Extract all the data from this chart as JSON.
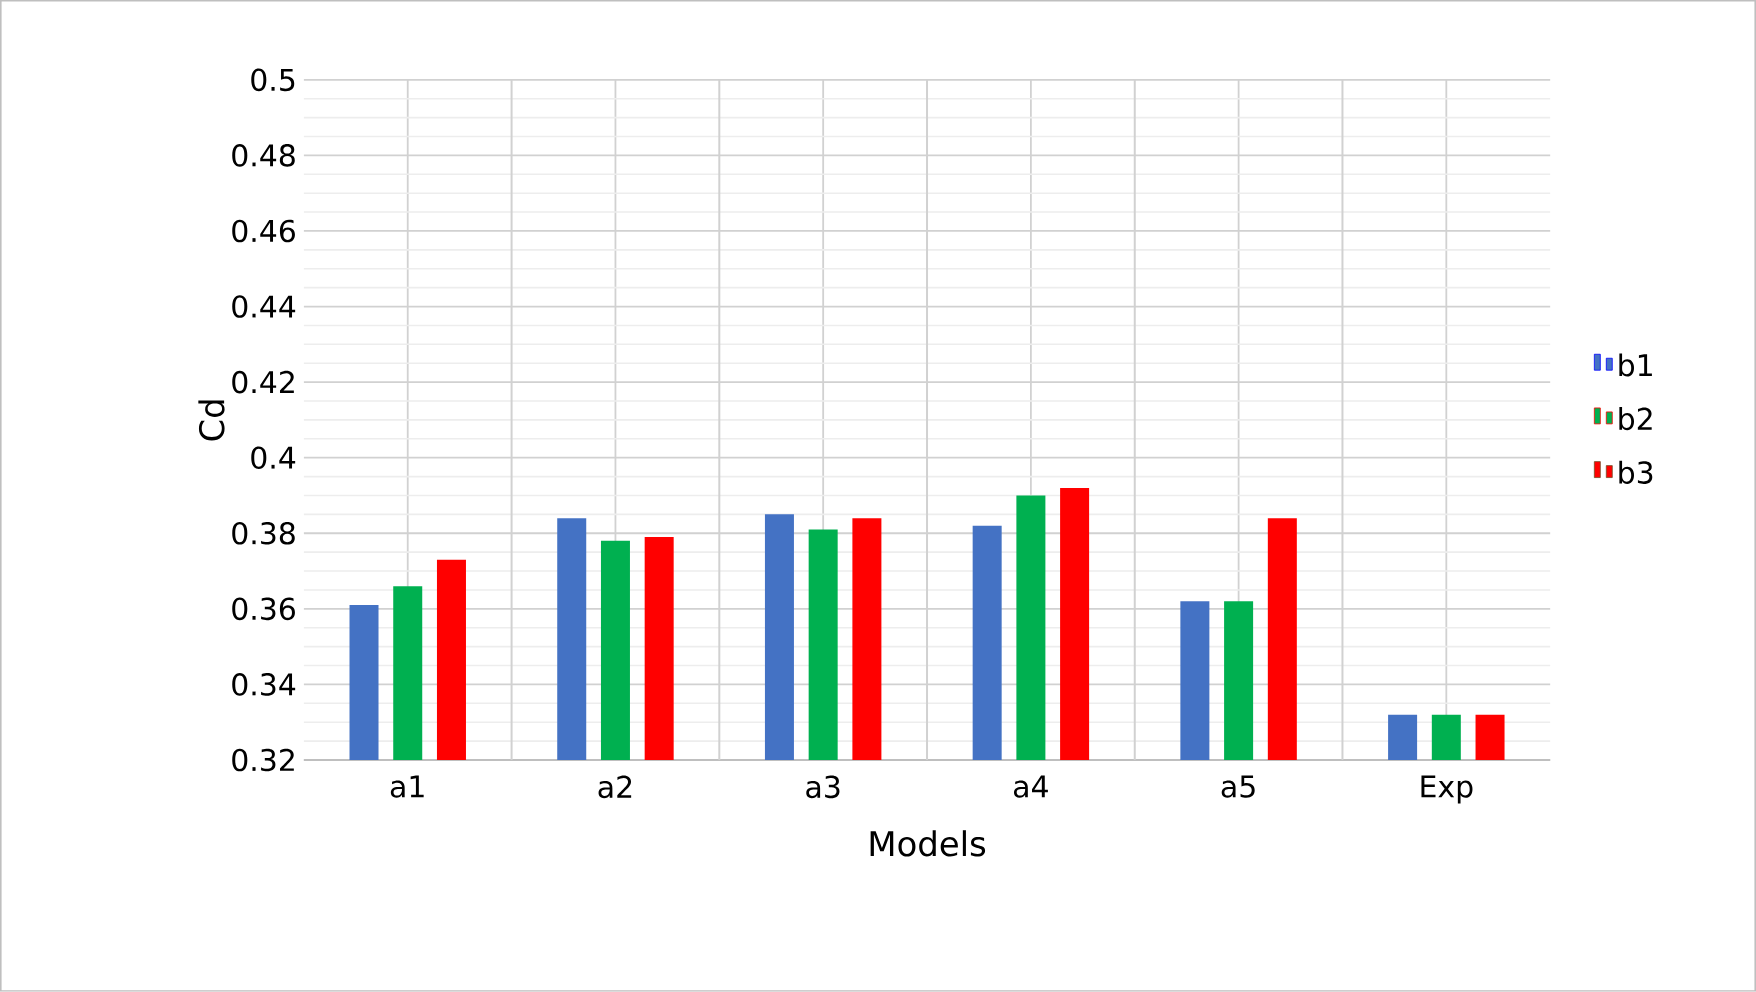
{
  "chart_data": {
    "type": "bar",
    "xlabel": "Models",
    "ylabel": "Cd",
    "categories": [
      "a1",
      "a2",
      "a3",
      "a4",
      "a5",
      "Exp"
    ],
    "series": [
      {
        "name": "b1",
        "color": "#4472c4",
        "values": [
          0.361,
          0.384,
          0.385,
          0.382,
          0.362,
          0.332
        ]
      },
      {
        "name": "b2",
        "color": "#00b050",
        "values": [
          0.366,
          0.378,
          0.381,
          0.39,
          0.362,
          0.332
        ]
      },
      {
        "name": "b3",
        "color": "#ff0000",
        "values": [
          0.373,
          0.379,
          0.384,
          0.392,
          0.384,
          0.332
        ]
      }
    ],
    "ylim": [
      0.32,
      0.5
    ],
    "yticks": [
      0.32,
      0.34,
      0.36,
      0.38,
      0.4,
      0.42,
      0.44,
      0.46,
      0.48,
      0.5
    ],
    "grid": true,
    "legend": "right"
  }
}
